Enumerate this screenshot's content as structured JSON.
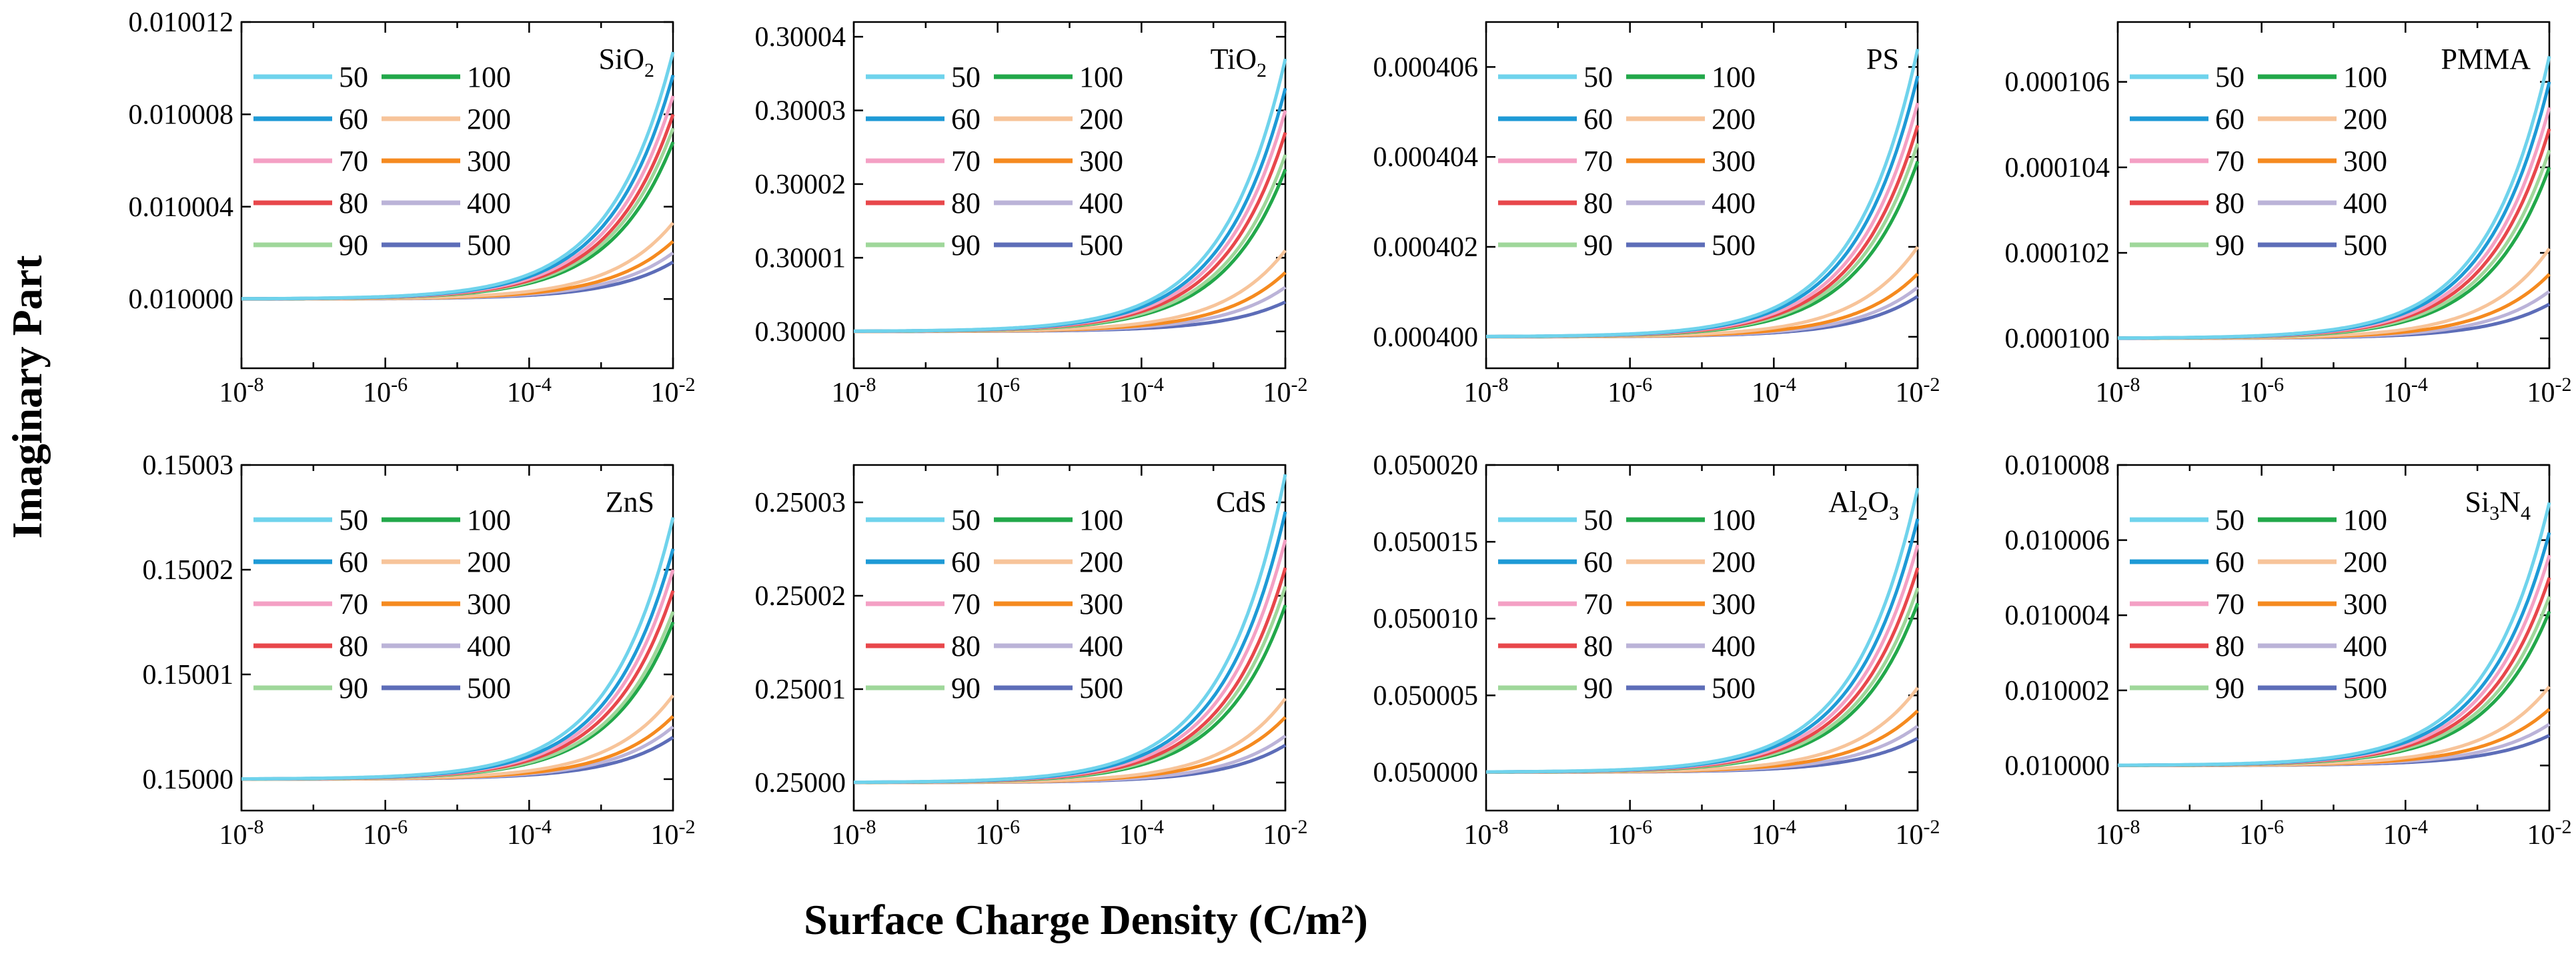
{
  "figure": {
    "ylabel": "Imaginary Part",
    "xlabel": "Surface Charge Density (C/m²)"
  },
  "colors": {
    "50": "#6fd3ec",
    "60": "#1e9ad6",
    "70": "#f4a0c4",
    "80": "#e8474b",
    "90": "#9fd79a",
    "100": "#22a84a",
    "200": "#f7c49a",
    "300": "#f58a1f",
    "400": "#bbb3d8",
    "500": "#5d6db8"
  },
  "chart_data": [
    {
      "type": "line",
      "title": "SiO₂",
      "xscale": "log",
      "xlim": [
        1e-08,
        0.01
      ],
      "xticks": [
        "10⁻⁸",
        "10⁻⁶",
        "10⁻⁴",
        "10⁻²"
      ],
      "ylim": [
        0.009997,
        0.010012
      ],
      "yticks": [
        "0.010000",
        "0.010004",
        "0.010008",
        "0.010012"
      ],
      "ytick_values": [
        0.01,
        0.010004,
        0.010008,
        0.010012
      ],
      "baseline": 0.01,
      "legend": [
        "50",
        "60",
        "70",
        "80",
        "90",
        "100",
        "200",
        "300",
        "400",
        "500"
      ],
      "series": [
        {
          "name": "50",
          "end_value": 0.0100107
        },
        {
          "name": "60",
          "end_value": 0.0100097
        },
        {
          "name": "70",
          "end_value": 0.0100088
        },
        {
          "name": "80",
          "end_value": 0.010008
        },
        {
          "name": "90",
          "end_value": 0.0100074
        },
        {
          "name": "100",
          "end_value": 0.0100068
        },
        {
          "name": "200",
          "end_value": 0.0100033
        },
        {
          "name": "300",
          "end_value": 0.0100025
        },
        {
          "name": "400",
          "end_value": 0.010002
        },
        {
          "name": "500",
          "end_value": 0.0100016
        }
      ]
    },
    {
      "type": "line",
      "title": "TiO₂",
      "xscale": "log",
      "xlim": [
        1e-08,
        0.01
      ],
      "xticks": [
        "10⁻⁸",
        "10⁻⁶",
        "10⁻⁴",
        "10⁻²"
      ],
      "ylim": [
        0.299995,
        0.300042
      ],
      "yticks": [
        "0.30000",
        "0.30001",
        "0.30002",
        "0.30003",
        "0.30004"
      ],
      "ytick_values": [
        0.3,
        0.30001,
        0.30002,
        0.30003,
        0.30004
      ],
      "baseline": 0.3,
      "legend": [
        "50",
        "60",
        "70",
        "80",
        "90",
        "100",
        "200",
        "300",
        "400",
        "500"
      ],
      "series": [
        {
          "name": "50",
          "end_value": 0.300037
        },
        {
          "name": "60",
          "end_value": 0.300033
        },
        {
          "name": "70",
          "end_value": 0.30003
        },
        {
          "name": "80",
          "end_value": 0.300027
        },
        {
          "name": "90",
          "end_value": 0.300024
        },
        {
          "name": "100",
          "end_value": 0.300022
        },
        {
          "name": "200",
          "end_value": 0.300011
        },
        {
          "name": "300",
          "end_value": 0.300008
        },
        {
          "name": "400",
          "end_value": 0.300006
        },
        {
          "name": "500",
          "end_value": 0.300004
        }
      ]
    },
    {
      "type": "line",
      "title": "PS",
      "xscale": "log",
      "xlim": [
        1e-08,
        0.01
      ],
      "xticks": [
        "10⁻⁸",
        "10⁻⁶",
        "10⁻⁴",
        "10⁻²"
      ],
      "ylim": [
        0.0003993,
        0.000407
      ],
      "yticks": [
        "0.000400",
        "0.000402",
        "0.000404",
        "0.000406"
      ],
      "ytick_values": [
        0.0004,
        0.000402,
        0.000404,
        0.000406
      ],
      "baseline": 0.0004,
      "legend": [
        "50",
        "60",
        "70",
        "80",
        "90",
        "100",
        "200",
        "300",
        "400",
        "500"
      ],
      "series": [
        {
          "name": "50",
          "end_value": 0.0004064
        },
        {
          "name": "60",
          "end_value": 0.0004058
        },
        {
          "name": "70",
          "end_value": 0.0004052
        },
        {
          "name": "80",
          "end_value": 0.0004047
        },
        {
          "name": "90",
          "end_value": 0.0004043
        },
        {
          "name": "100",
          "end_value": 0.0004039
        },
        {
          "name": "200",
          "end_value": 0.000402
        },
        {
          "name": "300",
          "end_value": 0.0004014
        },
        {
          "name": "400",
          "end_value": 0.0004011
        },
        {
          "name": "500",
          "end_value": 0.0004009
        }
      ]
    },
    {
      "type": "line",
      "title": "PMMA",
      "xscale": "log",
      "xlim": [
        1e-08,
        0.01
      ],
      "xticks": [
        "10⁻⁸",
        "10⁻⁶",
        "10⁻⁴",
        "10⁻²"
      ],
      "ylim": [
        9.93e-05,
        0.0001074
      ],
      "yticks": [
        "0.000100",
        "0.000102",
        "0.000104",
        "0.000106"
      ],
      "ytick_values": [
        0.0001,
        0.000102,
        0.000104,
        0.000106
      ],
      "baseline": 0.0001,
      "legend": [
        "50",
        "60",
        "70",
        "80",
        "90",
        "100",
        "200",
        "300",
        "400",
        "500"
      ],
      "series": [
        {
          "name": "50",
          "end_value": 0.0001066
        },
        {
          "name": "60",
          "end_value": 0.000106
        },
        {
          "name": "70",
          "end_value": 0.0001054
        },
        {
          "name": "80",
          "end_value": 0.0001049
        },
        {
          "name": "90",
          "end_value": 0.0001044
        },
        {
          "name": "100",
          "end_value": 0.000104
        },
        {
          "name": "200",
          "end_value": 0.0001021
        },
        {
          "name": "300",
          "end_value": 0.0001015
        },
        {
          "name": "400",
          "end_value": 0.0001011
        },
        {
          "name": "500",
          "end_value": 0.0001008
        }
      ]
    },
    {
      "type": "line",
      "title": "ZnS",
      "xscale": "log",
      "xlim": [
        1e-08,
        0.01
      ],
      "xticks": [
        "10⁻⁸",
        "10⁻⁶",
        "10⁻⁴",
        "10⁻²"
      ],
      "ylim": [
        0.149997,
        0.15003
      ],
      "yticks": [
        "0.15000",
        "0.15001",
        "0.15002",
        "0.15003"
      ],
      "ytick_values": [
        0.15,
        0.15001,
        0.15002,
        0.15003
      ],
      "baseline": 0.15,
      "legend": [
        "50",
        "60",
        "70",
        "80",
        "90",
        "100",
        "200",
        "300",
        "400",
        "500"
      ],
      "series": [
        {
          "name": "50",
          "end_value": 0.150025
        },
        {
          "name": "60",
          "end_value": 0.150022
        },
        {
          "name": "70",
          "end_value": 0.15002
        },
        {
          "name": "80",
          "end_value": 0.150018
        },
        {
          "name": "90",
          "end_value": 0.150016
        },
        {
          "name": "100",
          "end_value": 0.150015
        },
        {
          "name": "200",
          "end_value": 0.150008
        },
        {
          "name": "300",
          "end_value": 0.150006
        },
        {
          "name": "400",
          "end_value": 0.150005
        },
        {
          "name": "500",
          "end_value": 0.150004
        }
      ]
    },
    {
      "type": "line",
      "title": "CdS",
      "xscale": "log",
      "xlim": [
        1e-08,
        0.01
      ],
      "xticks": [
        "10⁻⁸",
        "10⁻⁶",
        "10⁻⁴",
        "10⁻²"
      ],
      "ylim": [
        0.249997,
        0.250034
      ],
      "yticks": [
        "0.25000",
        "0.25001",
        "0.25002",
        "0.25003"
      ],
      "ytick_values": [
        0.25,
        0.25001,
        0.25002,
        0.25003
      ],
      "baseline": 0.25,
      "legend": [
        "50",
        "60",
        "70",
        "80",
        "90",
        "100",
        "200",
        "300",
        "400",
        "500"
      ],
      "series": [
        {
          "name": "50",
          "end_value": 0.250033
        },
        {
          "name": "60",
          "end_value": 0.250029
        },
        {
          "name": "70",
          "end_value": 0.250026
        },
        {
          "name": "80",
          "end_value": 0.250023
        },
        {
          "name": "90",
          "end_value": 0.250021
        },
        {
          "name": "100",
          "end_value": 0.250019
        },
        {
          "name": "200",
          "end_value": 0.250009
        },
        {
          "name": "300",
          "end_value": 0.250007
        },
        {
          "name": "400",
          "end_value": 0.250005
        },
        {
          "name": "500",
          "end_value": 0.250004
        }
      ]
    },
    {
      "type": "line",
      "title": "Al₂O₃",
      "xscale": "log",
      "xlim": [
        1e-08,
        0.01
      ],
      "xticks": [
        "10⁻⁸",
        "10⁻⁶",
        "10⁻⁴",
        "10⁻²"
      ],
      "ylim": [
        0.0499975,
        0.05002
      ],
      "yticks": [
        "0.050000",
        "0.050005",
        "0.050010",
        "0.050015",
        "0.050020"
      ],
      "ytick_values": [
        0.05,
        0.050005,
        0.05001,
        0.050015,
        0.05002
      ],
      "baseline": 0.05,
      "legend": [
        "50",
        "60",
        "70",
        "80",
        "90",
        "100",
        "200",
        "300",
        "400",
        "500"
      ],
      "series": [
        {
          "name": "50",
          "end_value": 0.0500185
        },
        {
          "name": "60",
          "end_value": 0.0500165
        },
        {
          "name": "70",
          "end_value": 0.0500148
        },
        {
          "name": "80",
          "end_value": 0.0500133
        },
        {
          "name": "90",
          "end_value": 0.050012
        },
        {
          "name": "100",
          "end_value": 0.050011
        },
        {
          "name": "200",
          "end_value": 0.0500055
        },
        {
          "name": "300",
          "end_value": 0.050004
        },
        {
          "name": "400",
          "end_value": 0.050003
        },
        {
          "name": "500",
          "end_value": 0.0500022
        }
      ]
    },
    {
      "type": "line",
      "title": "Si₃N₄",
      "xscale": "log",
      "xlim": [
        1e-08,
        0.01
      ],
      "xticks": [
        "10⁻⁸",
        "10⁻⁶",
        "10⁻⁴",
        "10⁻²"
      ],
      "ylim": [
        0.0099988,
        0.010008
      ],
      "yticks": [
        "0.010000",
        "0.010002",
        "0.010004",
        "0.010006",
        "0.010008"
      ],
      "ytick_values": [
        0.01,
        0.010002,
        0.010004,
        0.010006,
        0.010008
      ],
      "baseline": 0.01,
      "legend": [
        "50",
        "60",
        "70",
        "80",
        "90",
        "100",
        "200",
        "300",
        "400",
        "500"
      ],
      "series": [
        {
          "name": "50",
          "end_value": 0.010007
        },
        {
          "name": "60",
          "end_value": 0.0100062
        },
        {
          "name": "70",
          "end_value": 0.0100056
        },
        {
          "name": "80",
          "end_value": 0.010005
        },
        {
          "name": "90",
          "end_value": 0.0100045
        },
        {
          "name": "100",
          "end_value": 0.0100041
        },
        {
          "name": "200",
          "end_value": 0.0100021
        },
        {
          "name": "300",
          "end_value": 0.0100015
        },
        {
          "name": "400",
          "end_value": 0.0100011
        },
        {
          "name": "500",
          "end_value": 0.0100008
        }
      ]
    }
  ]
}
